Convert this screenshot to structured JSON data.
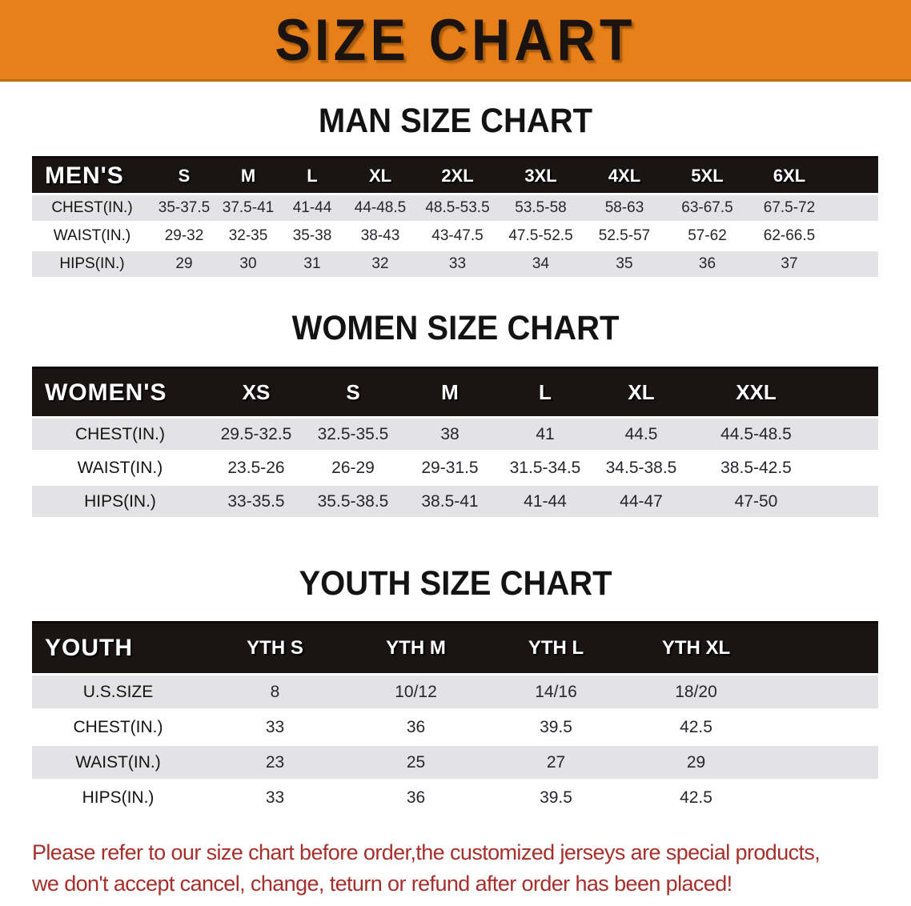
{
  "banner": {
    "title": "SIZE CHART"
  },
  "sections": {
    "men": {
      "heading": "MAN SIZE CHART",
      "table": {
        "corner_label": "MEN'S",
        "columns": [
          "S",
          "M",
          "L",
          "XL",
          "2XL",
          "3XL",
          "4XL",
          "5XL",
          "6XL"
        ],
        "rows": [
          {
            "label": "CHEST(IN.)",
            "values": [
              "35-37.5",
              "37.5-41",
              "41-44",
              "44-48.5",
              "48.5-53.5",
              "53.5-58",
              "58-63",
              "63-67.5",
              "67.5-72"
            ]
          },
          {
            "label": "WAIST(IN.)",
            "values": [
              "29-32",
              "32-35",
              "35-38",
              "38-43",
              "43-47.5",
              "47.5-52.5",
              "52.5-57",
              "57-62",
              "62-66.5"
            ]
          },
          {
            "label": "HIPS(IN.)",
            "values": [
              "29",
              "30",
              "31",
              "32",
              "33",
              "34",
              "35",
              "36",
              "37"
            ]
          }
        ]
      }
    },
    "women": {
      "heading": "WOMEN SIZE CHART",
      "table": {
        "corner_label": "WOMEN'S",
        "columns": [
          "XS",
          "S",
          "M",
          "L",
          "XL",
          "XXL"
        ],
        "rows": [
          {
            "label": "CHEST(IN.)",
            "values": [
              "29.5-32.5",
              "32.5-35.5",
              "38",
              "41",
              "44.5",
              "44.5-48.5"
            ]
          },
          {
            "label": "WAIST(IN.)",
            "values": [
              "23.5-26",
              "26-29",
              "29-31.5",
              "31.5-34.5",
              "34.5-38.5",
              "38.5-42.5"
            ]
          },
          {
            "label": "HIPS(IN.)",
            "values": [
              "33-35.5",
              "35.5-38.5",
              "38.5-41",
              "41-44",
              "44-47",
              "47-50"
            ]
          }
        ]
      }
    },
    "youth": {
      "heading": "YOUTH SIZE CHART",
      "table": {
        "corner_label": "YOUTH",
        "columns": [
          "YTH S",
          "YTH M",
          "YTH L",
          "YTH XL"
        ],
        "rows": [
          {
            "label": "U.S.SIZE",
            "values": [
              "8",
              "10/12",
              "14/16",
              "18/20"
            ]
          },
          {
            "label": "CHEST(IN.)",
            "values": [
              "33",
              "36",
              "39.5",
              "42.5"
            ]
          },
          {
            "label": "WAIST(IN.)",
            "values": [
              "23",
              "25",
              "27",
              "29"
            ]
          },
          {
            "label": "HIPS(IN.)",
            "values": [
              "33",
              "36",
              "39.5",
              "42.5"
            ]
          }
        ]
      }
    }
  },
  "disclaimer": {
    "line1": "Please refer to our size chart before order,the customized jerseys are special products,",
    "line2": "we don't accept cancel, change, teturn or refund after order has been placed!"
  },
  "colors": {
    "banner_bg": "#E8801A",
    "banner_text": "#1A1310",
    "header_bar_bg": "#1A1414",
    "header_bar_text": "#FFFFFF",
    "row_stripe_gray": "#E3E3E5",
    "disclaimer_red": "#A5302B"
  }
}
